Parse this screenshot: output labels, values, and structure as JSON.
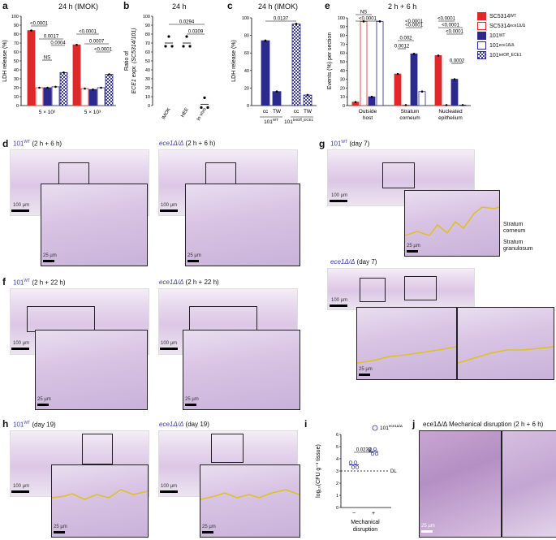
{
  "panel_a": {
    "letter": "a",
    "title": "24 h (IMOK)",
    "ylabel": "LDH release (%)",
    "yticks": [
      "0",
      "10",
      "20",
      "30",
      "40",
      "50",
      "60",
      "70",
      "80",
      "90",
      "100"
    ],
    "xgroups": [
      "5 × 10²",
      "5 × 10³"
    ],
    "pvalues": [
      "<0.0001",
      "0.0017",
      "NS",
      "0.0004",
      "<0.0001",
      "0.0007",
      "<0.0001"
    ]
  },
  "panel_b": {
    "letter": "b",
    "title": "24 h",
    "ylabel1": "Ratio of",
    "ylabel2": "ECE1 expr. (SC5314/101)",
    "yticks": [
      "0",
      "10",
      "20",
      "30",
      "40",
      "50",
      "60",
      "70",
      "80",
      "90",
      "100"
    ],
    "xcats": [
      "IMOK",
      "HEE",
      "In vivo"
    ],
    "pvalues": [
      "0.0294",
      "0.0309"
    ]
  },
  "panel_c": {
    "letter": "c",
    "title": "24 h (IMOK)",
    "ylabel": "LDH release (%)",
    "yticks": [
      "0",
      "20",
      "40",
      "60",
      "80",
      "100"
    ],
    "xcats": [
      "cc",
      "TW",
      "cc",
      "TW"
    ],
    "strain1": "101",
    "strain1_sup": "WT",
    "strain2": "101",
    "strain2_sup": "tetOff_ECE1",
    "pvalues": [
      "0.0137"
    ]
  },
  "panel_e": {
    "letter": "e",
    "title": "2 h + 6 h",
    "ylabel": "Events (%) per section",
    "yticks": [
      "0",
      "10",
      "20",
      "30",
      "40",
      "50",
      "60",
      "70",
      "80",
      "90",
      "100"
    ],
    "groups": [
      "Outside host",
      "Stratum corneum",
      "Nucleated epithelium"
    ],
    "group_lines": [
      [
        "Outside",
        "host"
      ],
      [
        "Stratum",
        "corneum"
      ],
      [
        "Nucleated",
        "epithelium"
      ]
    ],
    "pvalues": [
      "NS",
      "<0.0001",
      "<0.0001",
      "0.002",
      "0.0012",
      "<0.0001",
      "<0.0001",
      "<0.0001",
      "<0.0001",
      "0.0002"
    ]
  },
  "legend": {
    "items": [
      {
        "label": "SC5314",
        "sup": "WT",
        "style": "red-fill"
      },
      {
        "label": "SC5314",
        "sup": "ece1Δ/Δ",
        "style": "red-open"
      },
      {
        "label": "101",
        "sup": "WT",
        "style": "blue-fill"
      },
      {
        "label": "101",
        "sup": "ece1Δ/Δ",
        "style": "blue-open"
      },
      {
        "label": "101",
        "sup": "tetOff_ECE1",
        "style": "blue-check"
      }
    ]
  },
  "panel_d": {
    "letter": "d",
    "left_strain": "101",
    "left_sup": "WT",
    "left_time": "(2 h + 6 h)",
    "right_strain": "ece1Δ/Δ",
    "right_time": "(2 h + 6 h)",
    "scale1": "100 µm",
    "scale2": "25 µm"
  },
  "panel_f": {
    "letter": "f",
    "left_strain": "101",
    "left_sup": "WT",
    "left_time": "(2 h + 22 h)",
    "right_strain": "ece1Δ/Δ",
    "right_time": "(2 h + 22 h)",
    "scale1": "100 µm",
    "scale2": "25 µm"
  },
  "panel_g": {
    "letter": "g",
    "top_strain": "101",
    "top_sup": "WT",
    "top_time": "(day 7)",
    "bottom_strain": "ece1Δ/Δ",
    "bottom_time": "(day 7)",
    "label_corneum": [
      "Stratum",
      "corneum"
    ],
    "label_granulosum": [
      "Stratum",
      "granulosum"
    ],
    "scale1": "100 µm",
    "scale2": "25 µm"
  },
  "panel_h": {
    "letter": "h",
    "left_strain": "101",
    "left_sup": "WT",
    "left_time": "(day 19)",
    "right_strain": "ece1Δ/Δ",
    "right_time": "(day 19)",
    "scale1": "100 µm",
    "scale2": "25 µm"
  },
  "panel_i": {
    "letter": "i",
    "legend_strain": "101",
    "legend_sup": "ece1Δ/Δ",
    "ylabel": "log₁₀(CFU g⁻¹ tissue)",
    "yticks": [
      "0",
      "1",
      "2",
      "3",
      "4",
      "5",
      "6"
    ],
    "xcats": [
      "−",
      "+"
    ],
    "xlabel1": "Mechanical",
    "xlabel2": "disruption",
    "pvalue": "0.0233",
    "dl": "DL"
  },
  "panel_j": {
    "letter": "j",
    "title": "ece1Δ/Δ Mechanical disruption (2 h + 6 h)",
    "scale": "25 µm"
  },
  "chart_data": [
    {
      "type": "bar",
      "title": "24 h (IMOK)",
      "ylabel": "LDH release (%)",
      "ylim": [
        0,
        100
      ],
      "categories": [
        "5 × 10²",
        "5 × 10³"
      ],
      "series": [
        {
          "name": "SC5314 WT",
          "values": [
            84,
            68
          ]
        },
        {
          "name": "SC5314 ece1Δ/Δ",
          "values": [
            20,
            19
          ]
        },
        {
          "name": "101 WT",
          "values": [
            20,
            18
          ]
        },
        {
          "name": "101 ece1Δ/Δ",
          "values": [
            21,
            20
          ]
        },
        {
          "name": "101 tetOff_ECE1",
          "values": [
            37,
            35
          ]
        }
      ]
    },
    {
      "type": "scatter",
      "title": "24 h",
      "ylabel": "Ratio of ECE1 expr. (SC5314/101)",
      "ylim": [
        0,
        100
      ],
      "categories": [
        "IMOK",
        "HEE",
        "In vivo"
      ],
      "values": [
        70,
        70,
        1.5
      ]
    },
    {
      "type": "bar",
      "title": "24 h (IMOK)",
      "ylabel": "LDH release (%)",
      "ylim": [
        0,
        100
      ],
      "categories": [
        "cc TW 101 WT",
        "cc TW 101 tetOff_ECE1"
      ],
      "series": [
        {
          "name": "cc",
          "values": [
            74,
            93
          ]
        },
        {
          "name": "TW",
          "values": [
            16,
            12
          ]
        }
      ]
    },
    {
      "type": "bar",
      "title": "2 h + 6 h",
      "ylabel": "Events (%) per section",
      "ylim": [
        0,
        100
      ],
      "categories": [
        "Outside host",
        "Stratum corneum",
        "Nucleated epithelium"
      ],
      "series": [
        {
          "name": "SC5314 WT",
          "values": [
            4,
            36,
            57
          ]
        },
        {
          "name": "SC5314 ece1Δ/Δ",
          "values": [
            96,
            0,
            0
          ]
        },
        {
          "name": "101 WT",
          "values": [
            10,
            59,
            30
          ]
        },
        {
          "name": "101 ece1Δ/Δ",
          "values": [
            96,
            16,
            0
          ]
        }
      ]
    },
    {
      "type": "scatter",
      "ylabel": "log₁₀(CFU g⁻¹ tissue)",
      "ylim": [
        0,
        6
      ],
      "categories": [
        "−",
        "+"
      ],
      "values": [
        3.5,
        4.6
      ]
    }
  ]
}
